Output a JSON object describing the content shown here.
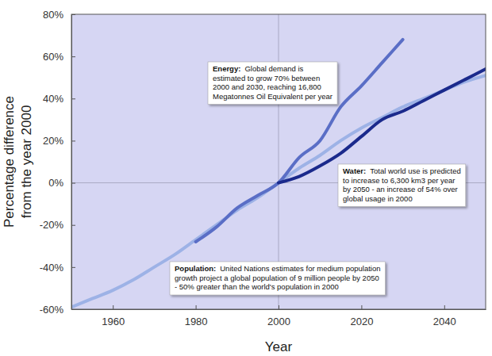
{
  "chart_data": {
    "type": "line",
    "x_label": "Year",
    "y_label": [
      "Percentage difference",
      "from the year 2000"
    ],
    "x": [
      1950,
      1955,
      1960,
      1965,
      1970,
      1975,
      1980,
      1985,
      1990,
      1995,
      2000,
      2005,
      2010,
      2015,
      2020,
      2025,
      2030,
      2035,
      2040,
      2045,
      2050
    ],
    "series": [
      {
        "color": "#9db2e6",
        "values": [
          -59,
          -55,
          -51,
          -46,
          -40,
          -34,
          -27,
          -20,
          -13,
          -7,
          0,
          7,
          13,
          20,
          26,
          31,
          36,
          40,
          44,
          48,
          51
        ]
      },
      {
        "color": "#5a6ec6",
        "values": [
          null,
          null,
          null,
          null,
          null,
          null,
          -28,
          -21,
          -12,
          -6,
          0,
          12,
          20,
          36,
          46,
          57,
          68,
          null,
          null,
          null,
          null
        ]
      },
      {
        "color": "#1b2a8c",
        "values": [
          null,
          null,
          null,
          null,
          null,
          null,
          null,
          null,
          null,
          null,
          0,
          3,
          8,
          14,
          22,
          30,
          34,
          39,
          44,
          49,
          54
        ]
      }
    ],
    "xlim": [
      1950,
      2050
    ],
    "xticks": [
      1960,
      1980,
      2000,
      2020,
      2040
    ],
    "ylim": [
      -60,
      80
    ],
    "yticks": [
      {
        "value": -60,
        "label": "-60%"
      },
      {
        "value": -40,
        "label": "-40%"
      },
      {
        "value": -20,
        "label": "-20%"
      },
      {
        "value": 0,
        "label": "0%"
      },
      {
        "value": 20,
        "label": "20%"
      },
      {
        "value": 40,
        "label": "40%"
      },
      {
        "value": 60,
        "label": "60%"
      },
      {
        "value": 80,
        "label": "80%"
      }
    ],
    "reference_lines": {
      "x": 2000,
      "y": 0
    },
    "grid": false,
    "annotations": [
      {
        "label": "Energy:",
        "lines": [
          "Global demand is",
          "estimated to grow 70% between",
          "2000 and 2030, reaching 16,800",
          "Megatonnes Oil Equivalent per year"
        ]
      },
      {
        "label": "Water:",
        "lines": [
          "Total world use is predicted",
          "to increase to 6,300 km3 per year",
          "by 2050 - an increase of 54% over",
          "global usage in 2000"
        ]
      },
      {
        "label": "Population:",
        "lines": [
          "United Nations estimates for medium population",
          "growth project a global population of 9 million people by 2050",
          "- 50% greater than the world's population in 2000"
        ]
      }
    ]
  }
}
